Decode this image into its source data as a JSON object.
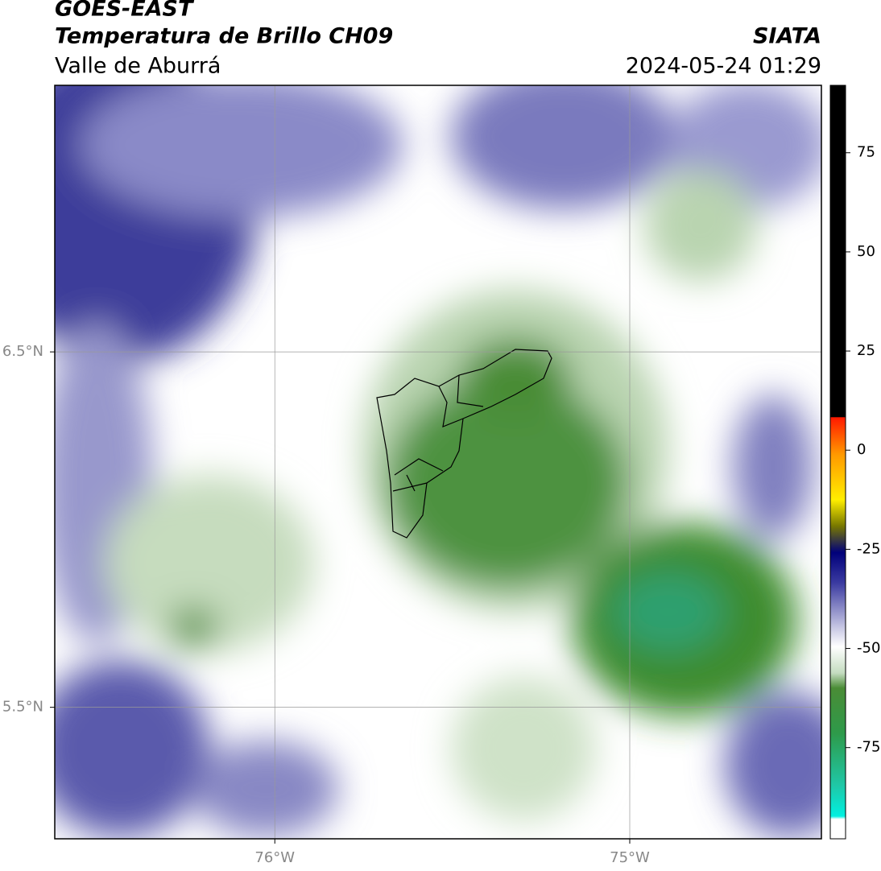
{
  "header": {
    "title": "GOES-EAST",
    "subtitle": "Temperatura de Brillo CH09",
    "region": "Valle de Aburrá",
    "agency": "SIATA",
    "datetime": "2024-05-24 01:29"
  },
  "map": {
    "lon_extent": [
      -76.62,
      -74.46
    ],
    "lat_extent": [
      5.13,
      7.25
    ],
    "lon_ticks": [
      {
        "value": -76,
        "label": "76°W"
      },
      {
        "value": -75,
        "label": "75°W"
      }
    ],
    "lat_ticks": [
      {
        "value": 6.5,
        "label": "6.5°N"
      },
      {
        "value": 5.5,
        "label": "5.5°N"
      }
    ],
    "grid": true
  },
  "colorbar": {
    "clim": [
      -98,
      92
    ],
    "ticks": [
      75,
      50,
      25,
      0,
      -25,
      -50,
      -75
    ]
  }
}
